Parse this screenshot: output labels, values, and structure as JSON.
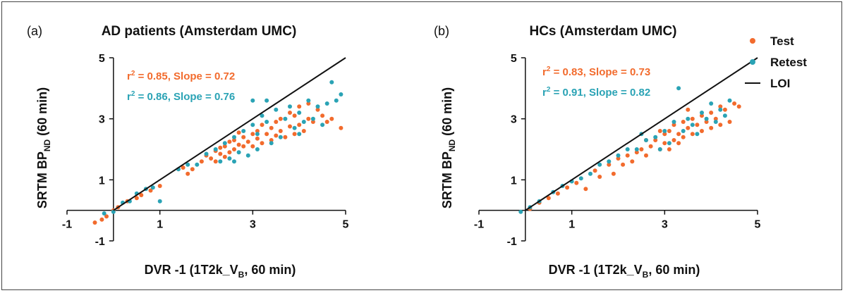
{
  "colors": {
    "test": "#f26b2d",
    "retest": "#2aa3b5",
    "loi": "#111111",
    "axis": "#111111",
    "text": "#111111"
  },
  "legend": {
    "placement": "top-right",
    "items": [
      {
        "label": "Test",
        "marker": "dot",
        "color": "#f26b2d"
      },
      {
        "label": "Retest",
        "marker": "dot",
        "color": "#2aa3b5"
      },
      {
        "label": "LOI",
        "marker": "line",
        "color": "#111111"
      }
    ]
  },
  "chart_data": [
    {
      "type": "scatter",
      "panel_label": "(a)",
      "title": "AD patients (Amsterdam UMC)",
      "xlabel": {
        "main": "DVR -1 (1T2k_V",
        "sub": "B",
        "tail": ", 60 min)"
      },
      "ylabel": {
        "main": "SRTM BP",
        "sub": "ND",
        "tail": " (60 min)"
      },
      "xlim": [
        -1,
        5
      ],
      "ylim": [
        -1,
        5
      ],
      "xticks": [
        "-1",
        "1",
        "3",
        "5"
      ],
      "yticks": [
        "-1",
        "1",
        "3",
        "5"
      ],
      "grid": false,
      "identity_line": [
        [
          0,
          0
        ],
        [
          5,
          5
        ]
      ],
      "annotations": [
        {
          "r2_value": "0.85",
          "slope_text": ", Slope = 0.72",
          "series": "Test"
        },
        {
          "r2_value": "0.86",
          "slope_text": ", Slope = 0.76",
          "series": "Retest"
        }
      ],
      "series": [
        {
          "name": "Test",
          "regression": {
            "r2": 0.85,
            "slope": 0.72
          },
          "points": [
            [
              -0.4,
              -0.4
            ],
            [
              -0.25,
              -0.3
            ],
            [
              -0.15,
              -0.2
            ],
            [
              0.0,
              0.0
            ],
            [
              0.1,
              0.1
            ],
            [
              0.3,
              0.3
            ],
            [
              0.5,
              0.4
            ],
            [
              0.6,
              0.5
            ],
            [
              0.8,
              0.65
            ],
            [
              1.0,
              0.8
            ],
            [
              1.5,
              1.4
            ],
            [
              1.6,
              1.2
            ],
            [
              1.7,
              1.35
            ],
            [
              1.9,
              1.6
            ],
            [
              2.0,
              1.8
            ],
            [
              2.1,
              1.7
            ],
            [
              2.2,
              1.95
            ],
            [
              2.3,
              1.85
            ],
            [
              2.3,
              2.05
            ],
            [
              2.4,
              2.1
            ],
            [
              2.5,
              1.9
            ],
            [
              2.5,
              2.25
            ],
            [
              2.6,
              2.0
            ],
            [
              2.6,
              2.3
            ],
            [
              2.7,
              2.15
            ],
            [
              2.8,
              2.4
            ],
            [
              2.8,
              2.1
            ],
            [
              2.9,
              2.25
            ],
            [
              3.0,
              2.5
            ],
            [
              3.0,
              2.1
            ],
            [
              3.1,
              2.35
            ],
            [
              3.1,
              2.6
            ],
            [
              3.2,
              2.2
            ],
            [
              3.2,
              2.8
            ],
            [
              3.3,
              2.5
            ],
            [
              3.4,
              2.3
            ],
            [
              3.4,
              2.7
            ],
            [
              3.5,
              2.45
            ],
            [
              3.5,
              2.9
            ],
            [
              3.6,
              2.6
            ],
            [
              3.7,
              2.4
            ],
            [
              3.8,
              2.75
            ],
            [
              3.9,
              2.5
            ],
            [
              3.9,
              3.1
            ],
            [
              4.0,
              2.8
            ],
            [
              4.1,
              2.6
            ],
            [
              4.2,
              3.0
            ],
            [
              4.2,
              3.5
            ],
            [
              4.3,
              2.9
            ],
            [
              4.4,
              3.3
            ],
            [
              4.5,
              3.1
            ],
            [
              4.6,
              2.9
            ],
            [
              4.7,
              3.0
            ],
            [
              4.9,
              2.7
            ],
            [
              2.2,
              1.6
            ],
            [
              2.4,
              1.75
            ],
            [
              3.6,
              3.0
            ],
            [
              3.8,
              3.2
            ],
            [
              4.0,
              3.4
            ],
            [
              2.7,
              2.55
            ]
          ]
        },
        {
          "name": "Retest",
          "regression": {
            "r2": 0.86,
            "slope": 0.76
          },
          "points": [
            [
              -0.2,
              -0.1
            ],
            [
              0.0,
              -0.05
            ],
            [
              0.2,
              0.25
            ],
            [
              0.35,
              0.3
            ],
            [
              0.5,
              0.55
            ],
            [
              0.7,
              0.7
            ],
            [
              0.85,
              0.75
            ],
            [
              1.0,
              0.3
            ],
            [
              1.4,
              1.35
            ],
            [
              1.6,
              1.5
            ],
            [
              1.8,
              1.5
            ],
            [
              2.0,
              1.85
            ],
            [
              2.2,
              2.0
            ],
            [
              2.3,
              1.6
            ],
            [
              2.4,
              2.2
            ],
            [
              2.5,
              1.7
            ],
            [
              2.6,
              2.4
            ],
            [
              2.7,
              1.9
            ],
            [
              2.8,
              2.6
            ],
            [
              2.9,
              1.8
            ],
            [
              3.0,
              2.8
            ],
            [
              3.0,
              3.6
            ],
            [
              3.1,
              2.0
            ],
            [
              3.2,
              3.1
            ],
            [
              3.3,
              2.9
            ],
            [
              3.4,
              2.2
            ],
            [
              3.5,
              3.3
            ],
            [
              3.6,
              2.4
            ],
            [
              3.7,
              3.0
            ],
            [
              3.8,
              3.4
            ],
            [
              3.9,
              2.7
            ],
            [
              4.0,
              3.2
            ],
            [
              4.1,
              2.9
            ],
            [
              4.2,
              3.6
            ],
            [
              4.3,
              3.0
            ],
            [
              4.4,
              3.4
            ],
            [
              4.5,
              2.8
            ],
            [
              4.6,
              3.5
            ],
            [
              4.7,
              4.2
            ],
            [
              4.8,
              3.6
            ],
            [
              4.9,
              3.8
            ],
            [
              3.3,
              3.6
            ],
            [
              2.6,
              1.6
            ],
            [
              3.1,
              2.5
            ],
            [
              4.0,
              2.5
            ]
          ]
        }
      ]
    },
    {
      "type": "scatter",
      "panel_label": "(b)",
      "title": "HCs (Amsterdam  UMC)",
      "xlabel": {
        "main": "DVR -1 (1T2k_V",
        "sub": "B",
        "tail": ", 60 min)"
      },
      "ylabel": {
        "main": "SRTM BP",
        "sub": "ND",
        "tail": " (60 min)"
      },
      "xlim": [
        -1,
        5
      ],
      "ylim": [
        -1,
        5
      ],
      "xticks": [
        "-1",
        "1",
        "3",
        "5"
      ],
      "yticks": [
        "-1",
        "1",
        "3",
        "5"
      ],
      "grid": false,
      "identity_line": [
        [
          0,
          0
        ],
        [
          5,
          5
        ]
      ],
      "annotations": [
        {
          "r2_value": "0.83",
          "slope_text": ", Slope = 0.73",
          "series": "Test"
        },
        {
          "r2_value": "0.91",
          "slope_text": ", Slope = 0.82",
          "series": "Retest"
        }
      ],
      "series": [
        {
          "name": "Test",
          "regression": {
            "r2": 0.83,
            "slope": 0.73
          },
          "points": [
            [
              0.1,
              0.05
            ],
            [
              0.3,
              0.25
            ],
            [
              0.5,
              0.4
            ],
            [
              0.7,
              0.55
            ],
            [
              0.9,
              0.75
            ],
            [
              1.1,
              0.9
            ],
            [
              1.3,
              0.7
            ],
            [
              1.5,
              1.3
            ],
            [
              1.6,
              1.1
            ],
            [
              1.8,
              1.5
            ],
            [
              1.9,
              1.2
            ],
            [
              2.0,
              1.7
            ],
            [
              2.1,
              1.5
            ],
            [
              2.2,
              1.8
            ],
            [
              2.3,
              1.6
            ],
            [
              2.4,
              1.9
            ],
            [
              2.5,
              2.0
            ],
            [
              2.6,
              1.8
            ],
            [
              2.7,
              2.1
            ],
            [
              2.8,
              2.3
            ],
            [
              2.9,
              2.0
            ],
            [
              3.0,
              2.5
            ],
            [
              3.0,
              2.2
            ],
            [
              3.1,
              2.6
            ],
            [
              3.2,
              2.3
            ],
            [
              3.2,
              2.8
            ],
            [
              3.3,
              2.5
            ],
            [
              3.4,
              2.9
            ],
            [
              3.4,
              2.4
            ],
            [
              3.5,
              2.7
            ],
            [
              3.6,
              3.0
            ],
            [
              3.6,
              2.5
            ],
            [
              3.7,
              2.8
            ],
            [
              3.8,
              3.1
            ],
            [
              3.8,
              2.6
            ],
            [
              3.9,
              2.9
            ],
            [
              4.0,
              3.2
            ],
            [
              4.0,
              2.7
            ],
            [
              4.1,
              3.0
            ],
            [
              4.2,
              2.8
            ],
            [
              4.3,
              3.3
            ],
            [
              4.4,
              2.9
            ],
            [
              4.5,
              3.5
            ],
            [
              4.6,
              3.4
            ],
            [
              3.1,
              2.0
            ],
            [
              2.9,
              2.6
            ],
            [
              3.5,
              3.3
            ],
            [
              2.6,
              2.3
            ],
            [
              3.3,
              2.2
            ],
            [
              4.2,
              3.4
            ]
          ]
        },
        {
          "name": "Retest",
          "regression": {
            "r2": 0.91,
            "slope": 0.82
          },
          "points": [
            [
              -0.1,
              -0.05
            ],
            [
              0.1,
              0.1
            ],
            [
              0.3,
              0.3
            ],
            [
              0.6,
              0.6
            ],
            [
              0.8,
              0.8
            ],
            [
              1.0,
              0.95
            ],
            [
              1.2,
              1.05
            ],
            [
              1.4,
              1.2
            ],
            [
              1.6,
              1.5
            ],
            [
              1.8,
              1.6
            ],
            [
              2.0,
              1.8
            ],
            [
              2.2,
              2.0
            ],
            [
              2.4,
              2.0
            ],
            [
              2.6,
              2.3
            ],
            [
              2.8,
              2.4
            ],
            [
              3.0,
              2.6
            ],
            [
              3.1,
              2.2
            ],
            [
              3.2,
              2.9
            ],
            [
              3.3,
              4.0
            ],
            [
              3.4,
              2.6
            ],
            [
              3.5,
              3.0
            ],
            [
              3.6,
              2.8
            ],
            [
              3.8,
              3.2
            ],
            [
              3.9,
              3.0
            ],
            [
              4.0,
              3.5
            ],
            [
              4.1,
              2.9
            ],
            [
              4.2,
              3.3
            ],
            [
              4.3,
              3.1
            ],
            [
              4.4,
              3.6
            ],
            [
              2.9,
              2.0
            ],
            [
              3.7,
              2.5
            ],
            [
              2.5,
              2.5
            ]
          ]
        }
      ]
    }
  ]
}
